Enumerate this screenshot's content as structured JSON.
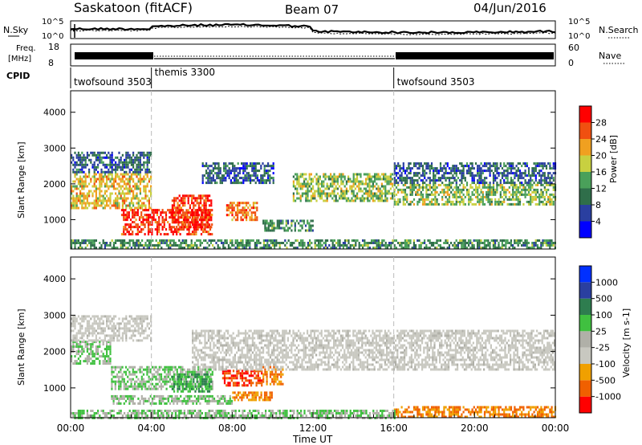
{
  "header": {
    "station": "Saskatoon (fitACF)",
    "beam": "Beam 07",
    "date": "04/Jun/2016"
  },
  "noise_panel": {
    "left_label": "N.Sky",
    "right_label": "N.Search",
    "left_ticks": [
      "10^5",
      "10^0"
    ],
    "right_ticks": [
      "10^5",
      "10^0"
    ]
  },
  "freq_panel": {
    "left_label_1": "Freq.",
    "left_label_2": "[MHz]",
    "right_label": "Nave",
    "left_ticks": [
      "18",
      "8"
    ],
    "right_ticks": [
      "60",
      "0"
    ]
  },
  "cpid": {
    "label": "CPID",
    "segments": [
      {
        "name": "twofsound 3503",
        "start_hour": 0,
        "end_hour": 4
      },
      {
        "name": "themis 3300",
        "start_hour": 4,
        "end_hour": 16
      },
      {
        "name": "twofsound 3503",
        "start_hour": 16,
        "end_hour": 24
      }
    ]
  },
  "x_axis": {
    "label": "Time UT",
    "ticks": [
      "00:00",
      "04:00",
      "08:00",
      "12:00",
      "16:00",
      "20:00",
      "00:00"
    ]
  },
  "colors": {
    "power": [
      "#0000ff",
      "#2a3fa0",
      "#2f6e4a",
      "#4aa05a",
      "#c8d040",
      "#f0a020",
      "#f05010",
      "#ff0000"
    ],
    "velocity": [
      "#ff0000",
      "#f06000",
      "#f0a000",
      "#c8c8c0",
      "#b0b0a8",
      "#40c040",
      "#2e7d4f",
      "#2a3fa0",
      "#0030ff"
    ],
    "boundary": "#bbbbbb"
  },
  "chart_data": [
    {
      "type": "heatmap",
      "title": "Power",
      "xlabel": "Time UT",
      "ylabel": "Slant Range [km]",
      "xlim": [
        0,
        24
      ],
      "ylim": [
        180,
        4600
      ],
      "yticks": [
        "4000",
        "3000",
        "2000",
        "1000"
      ],
      "colorbar": {
        "label": "Power [dB]",
        "ticks": [
          "28",
          "24",
          "20",
          "16",
          "12",
          "8",
          "4"
        ],
        "range": [
          0,
          32
        ]
      },
      "regions": [
        {
          "t0": 0,
          "t1": 4,
          "r0": 1300,
          "r1": 2300,
          "level": 20
        },
        {
          "t0": 0,
          "t1": 4,
          "r0": 2300,
          "r1": 2900,
          "level": 8
        },
        {
          "t0": 2.5,
          "t1": 7,
          "r0": 600,
          "r1": 1300,
          "level": 28
        },
        {
          "t0": 5,
          "t1": 7,
          "r0": 800,
          "r1": 1700,
          "level": 28
        },
        {
          "t0": 7.7,
          "t1": 9.2,
          "r0": 1000,
          "r1": 1500,
          "level": 26
        },
        {
          "t0": 9.5,
          "t1": 12,
          "r0": 700,
          "r1": 1000,
          "level": 12
        },
        {
          "t0": 6.5,
          "t1": 10,
          "r0": 2000,
          "r1": 2600,
          "level": 10
        },
        {
          "t0": 11,
          "t1": 16,
          "r0": 1500,
          "r1": 2300,
          "level": 16
        },
        {
          "t0": 16,
          "t1": 24,
          "r0": 1400,
          "r1": 2000,
          "level": 18
        },
        {
          "t0": 16,
          "t1": 24,
          "r0": 2000,
          "r1": 2600,
          "level": 10
        },
        {
          "t0": 0,
          "t1": 24,
          "r0": 200,
          "r1": 450,
          "level": 12
        }
      ]
    },
    {
      "type": "heatmap",
      "title": "Velocity",
      "xlabel": "Time UT",
      "ylabel": "Slant Range [km]",
      "xlim": [
        0,
        24
      ],
      "ylim": [
        180,
        4600
      ],
      "yticks": [
        "4000",
        "3000",
        "2000",
        "1000"
      ],
      "colorbar": {
        "label": "Velocity [m s-1]",
        "ticks": [
          "1000",
          "500",
          "100",
          "25",
          "-25",
          "-100",
          "-500",
          "-1000"
        ]
      },
      "regions": [
        {
          "t0": 0,
          "t1": 2,
          "r0": 1700,
          "r1": 2300,
          "level": 100
        },
        {
          "t0": 0,
          "t1": 4,
          "r0": 2300,
          "r1": 3000,
          "level": 0
        },
        {
          "t0": 2,
          "t1": 7,
          "r0": 1000,
          "r1": 1600,
          "level": 100
        },
        {
          "t0": 5,
          "t1": 7,
          "r0": 900,
          "r1": 1400,
          "level": 500
        },
        {
          "t0": 7.5,
          "t1": 9.5,
          "r0": 1100,
          "r1": 1500,
          "level": -500
        },
        {
          "t0": 9.5,
          "t1": 10.5,
          "r0": 1100,
          "r1": 1600,
          "level": -100
        },
        {
          "t0": 8,
          "t1": 10,
          "r0": 700,
          "r1": 900,
          "level": -100
        },
        {
          "t0": 6,
          "t1": 24,
          "r0": 1500,
          "r1": 2600,
          "level": 0
        },
        {
          "t0": 2,
          "t1": 8,
          "r0": 600,
          "r1": 800,
          "level": 100
        },
        {
          "t0": 16,
          "t1": 24,
          "r0": 200,
          "r1": 500,
          "level": -100
        },
        {
          "t0": 0,
          "t1": 16,
          "r0": 200,
          "r1": 400,
          "level": 100
        }
      ]
    }
  ]
}
